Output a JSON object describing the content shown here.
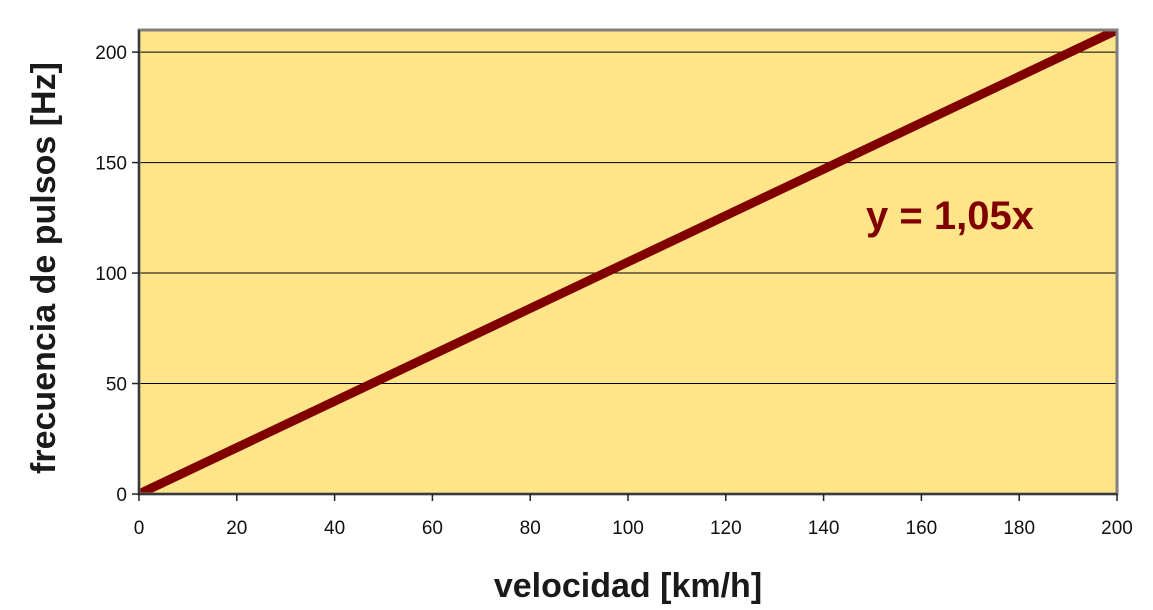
{
  "chart_data": {
    "type": "line",
    "title": "",
    "xlabel": "velocidad [km/h]",
    "ylabel": "frecuencia de pulsos [Hz]",
    "xlim": [
      0,
      200
    ],
    "ylim": [
      0,
      200
    ],
    "x_ticks": [
      0,
      20,
      40,
      60,
      80,
      100,
      120,
      140,
      160,
      180,
      200
    ],
    "y_ticks": [
      0,
      50,
      100,
      150,
      200
    ],
    "grid": {
      "horizontal": true,
      "vertical": false
    },
    "series": [
      {
        "x": [
          0,
          200
        ],
        "y": [
          0,
          210
        ],
        "color": "#800000"
      }
    ],
    "annotation": "y = 1,05x",
    "colors": {
      "plot_background": "#FFE58A",
      "frame": "#808080",
      "gridline": "#000000",
      "line": "#800000",
      "annotation": "#800000"
    }
  }
}
